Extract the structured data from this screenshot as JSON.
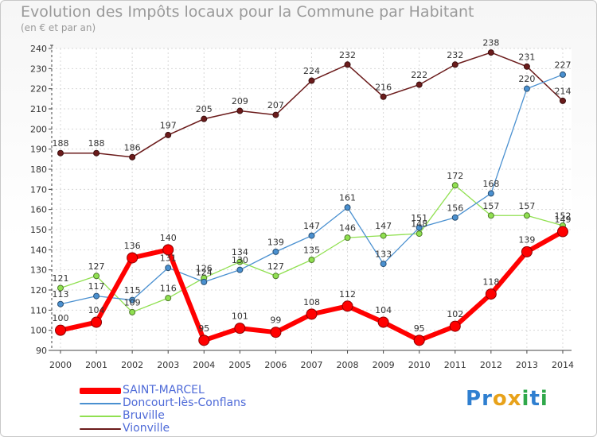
{
  "title": "Evolution des Impôts locaux pour la Commune par Habitant",
  "subtitle": "(en € et par an)",
  "logo": {
    "text": "Proxiti",
    "letters": [
      {
        "ch": "P",
        "color": "#2f7fd0"
      },
      {
        "ch": "r",
        "color": "#2f7fd0"
      },
      {
        "ch": "o",
        "color": "#e8a21a"
      },
      {
        "ch": "x",
        "color": "#e8a21a"
      },
      {
        "ch": "i",
        "color": "#2fa84a"
      },
      {
        "ch": "t",
        "color": "#2f7fd0"
      },
      {
        "ch": "i",
        "color": "#2fa84a"
      }
    ]
  },
  "chart_data": {
    "type": "line",
    "x": [
      "2000",
      "2001",
      "2002",
      "2003",
      "2004",
      "2005",
      "2006",
      "2007",
      "2008",
      "2009",
      "2010",
      "2011",
      "2012",
      "2013",
      "2014"
    ],
    "yticks": [
      90,
      100,
      110,
      120,
      130,
      140,
      150,
      160,
      170,
      180,
      190,
      200,
      210,
      220,
      230,
      240
    ],
    "ylim": [
      90,
      240
    ],
    "grid": true,
    "legend_position": "bottom-left",
    "series": [
      {
        "name": "Vionville",
        "color": "#6b1b1b",
        "line_width": 1.5,
        "marker": 3.5,
        "values": [
          188,
          188,
          186,
          197,
          205,
          209,
          207,
          224,
          232,
          216,
          222,
          232,
          238,
          231,
          214
        ]
      },
      {
        "name": "Bruville",
        "color": "#90e050",
        "line_width": 1.3,
        "marker": 3.5,
        "values": [
          121,
          127,
          109,
          116,
          126,
          134,
          127,
          135,
          146,
          147,
          148,
          172,
          157,
          157,
          152
        ]
      },
      {
        "name": "Doncourt-lès-Conflans",
        "color": "#4a90d0",
        "line_width": 1.3,
        "marker": 3.5,
        "values": [
          113,
          117,
          115,
          131,
          124,
          130,
          139,
          147,
          161,
          133,
          151,
          156,
          168,
          220,
          227
        ]
      },
      {
        "name": "SAINT-MARCEL",
        "color": "#ff0000",
        "line_width": 6,
        "marker": 6.5,
        "values": [
          100,
          104,
          136,
          140,
          95,
          101,
          99,
          108,
          112,
          104,
          95,
          102,
          118,
          139,
          149
        ]
      }
    ],
    "legend": [
      {
        "name": "SAINT-MARCEL",
        "color": "#ff0000",
        "thickness": 8
      },
      {
        "name": "Doncourt-lès-Conflans",
        "color": "#4a90d0",
        "thickness": 2
      },
      {
        "name": "Bruville",
        "color": "#90e050",
        "thickness": 2
      },
      {
        "name": "Vionville",
        "color": "#6b1b1b",
        "thickness": 2
      }
    ]
  }
}
